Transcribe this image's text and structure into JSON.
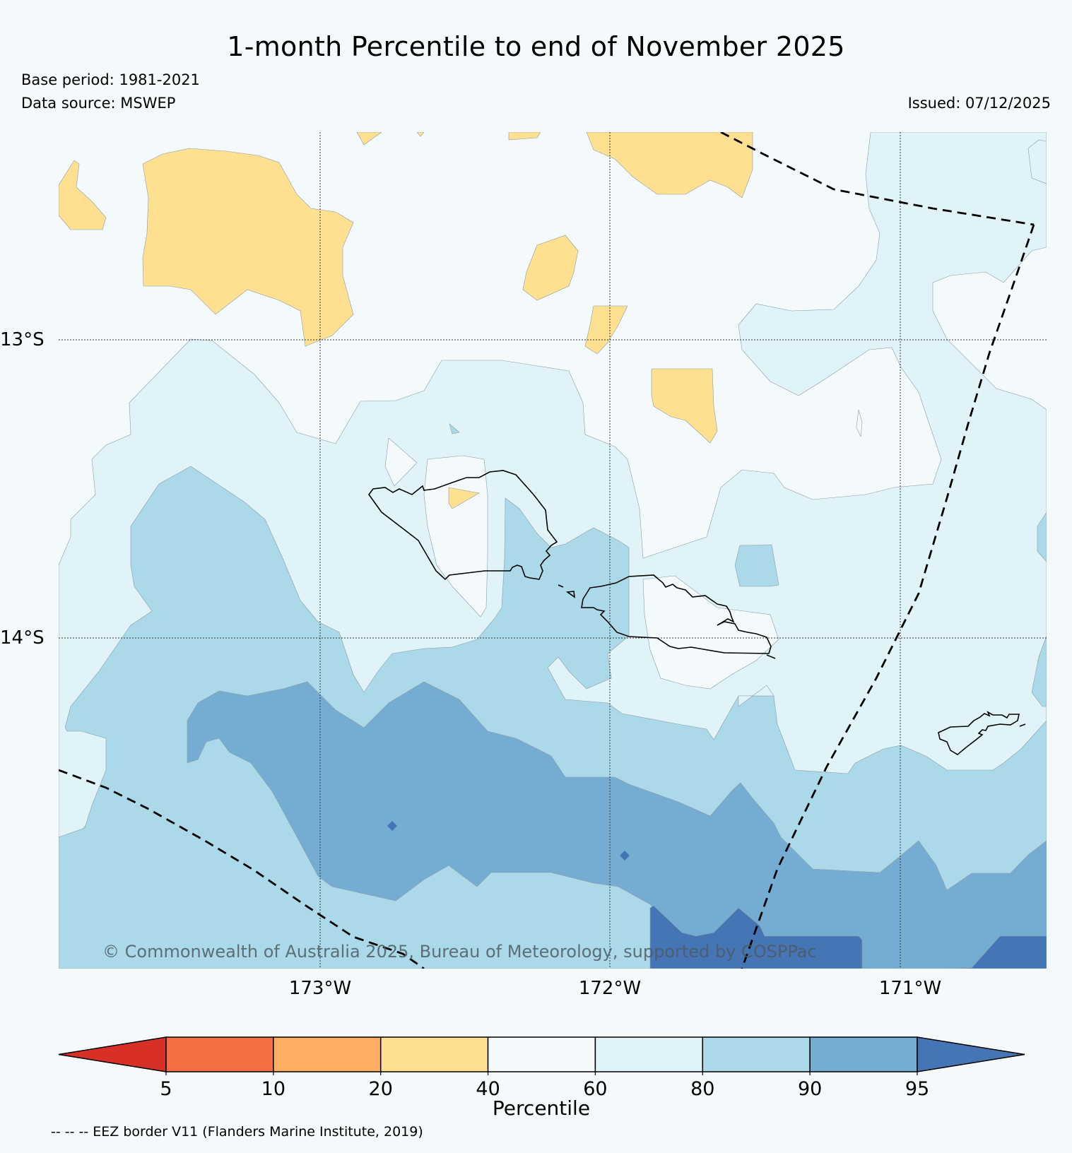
{
  "title": "1-month Percentile to end of November 2025",
  "base_period": "Base period: 1981-2021",
  "data_source": "Data source: MSWEP",
  "issued": "Issued: 07/12/2025",
  "credit": "© Commonwealth of Australia 2025, Bureau of Meteorology, supported by COSPPac",
  "eez_note": "-- -- -- EEZ border V11 (Flanders Marine Institute, 2019)",
  "axes": {
    "lat_labels": [
      "13°S",
      "14°S"
    ],
    "lon_labels": [
      "173°W",
      "172°W",
      "171°W"
    ]
  },
  "colorbar": {
    "label": "Percentile",
    "ticks": [
      "5",
      "10",
      "20",
      "40",
      "60",
      "80",
      "90",
      "95"
    ],
    "colors": [
      "#d73027",
      "#f46d43",
      "#fdae61",
      "#fee090",
      "#f4f9fc",
      "#e0f3f8",
      "#abd9e9",
      "#74add1",
      "#4575b4"
    ]
  },
  "palette": {
    "p20_40": "#fee090",
    "p40_60": "#f4f9fc",
    "p60_80": "#e0f3f8",
    "p80_90": "#abd9e9",
    "p90_95": "#74add1",
    "p95_plus": "#4575b4"
  }
}
